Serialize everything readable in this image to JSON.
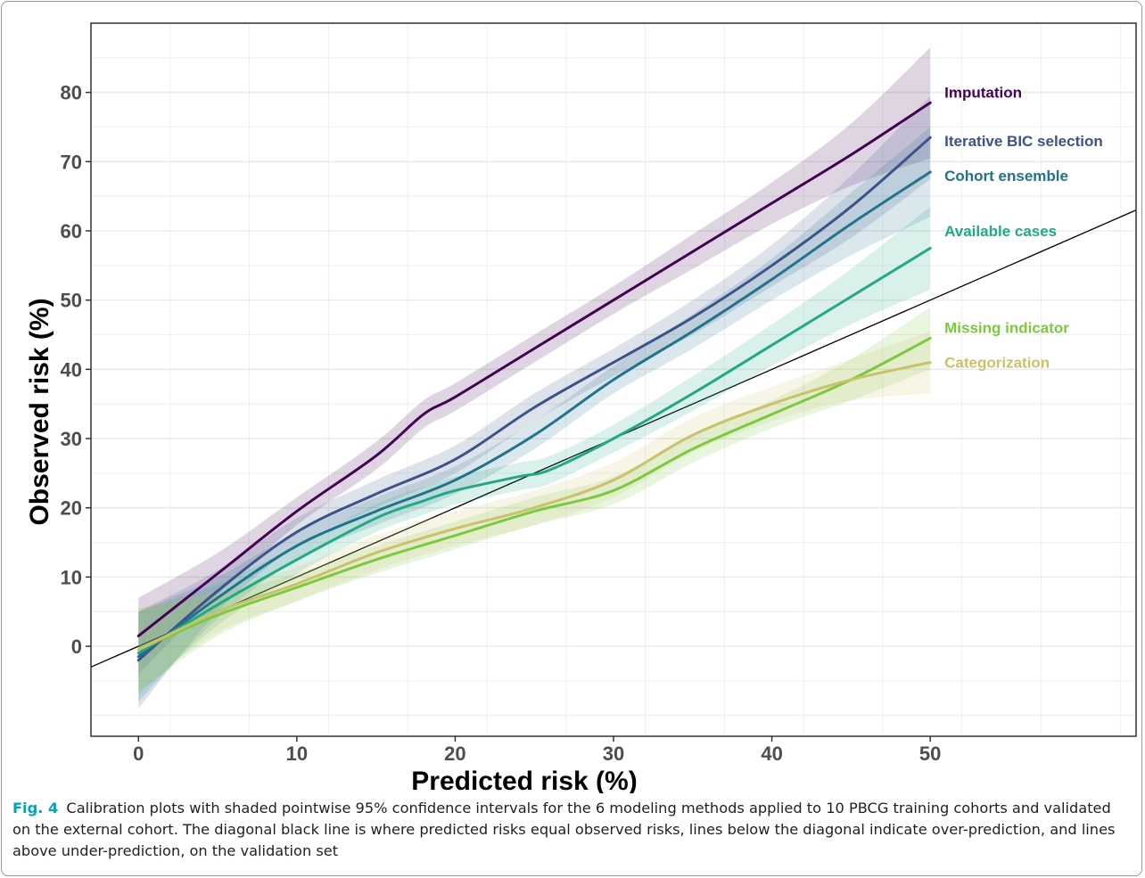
{
  "chart_data": {
    "type": "line",
    "xlabel": "Predicted risk (%)",
    "ylabel": "Observed risk (%)",
    "xlim": [
      -3,
      63
    ],
    "ylim": [
      -13,
      90
    ],
    "x_ticks": [
      0,
      10,
      20,
      30,
      40,
      50
    ],
    "y_ticks": [
      0,
      10,
      20,
      30,
      40,
      50,
      60,
      70,
      80
    ],
    "grid": true,
    "legend": "direct labels at right end of each line",
    "reference_line": {
      "description": "diagonal y = x",
      "color": "#000000"
    },
    "series": [
      {
        "name": "Imputation",
        "color": "#440154",
        "label_y": 80,
        "x": [
          0,
          5,
          10,
          15,
          18,
          20,
          25,
          30,
          35,
          40,
          45,
          50
        ],
        "y": [
          1.5,
          10.5,
          19.5,
          27.5,
          33.5,
          36,
          43,
          50,
          57,
          64,
          71,
          78.5
        ],
        "ci_half_width": [
          5.5,
          3,
          2,
          2,
          2,
          2,
          2,
          2,
          2.5,
          3,
          4.5,
          8
        ]
      },
      {
        "name": "Iterative BIC selection",
        "color": "#3b528b",
        "label_y": 73,
        "x": [
          0,
          5,
          10,
          15,
          20,
          25,
          30,
          35,
          40,
          45,
          50
        ],
        "y": [
          -2,
          8,
          16.5,
          22,
          27,
          34.5,
          41,
          47.5,
          55,
          63.5,
          73.5
        ],
        "ci_half_width": [
          7,
          3,
          2,
          2,
          2,
          2,
          2,
          2.5,
          3,
          4.5,
          6
        ]
      },
      {
        "name": "Cohort ensemble",
        "color": "#21728c",
        "label_y": 68,
        "x": [
          0,
          5,
          10,
          15,
          20,
          25,
          30,
          35,
          40,
          45,
          50
        ],
        "y": [
          -1.5,
          7,
          14.5,
          19.5,
          24,
          30.5,
          38.5,
          45.5,
          53,
          61,
          68.5
        ],
        "ci_half_width": [
          6.5,
          3,
          2,
          2,
          2,
          2,
          2,
          2.5,
          3,
          4.5,
          6.5
        ]
      },
      {
        "name": "Available cases",
        "color": "#22a884",
        "label_y": 60,
        "x": [
          0,
          5,
          10,
          15,
          18,
          20,
          24,
          26,
          30,
          35,
          40,
          45,
          50
        ],
        "y": [
          -1,
          6,
          12.5,
          18.5,
          21,
          22.5,
          24.5,
          25.5,
          30,
          36.5,
          43.5,
          50.5,
          57.5
        ],
        "ci_half_width": [
          6,
          3,
          2,
          2,
          2,
          2,
          2,
          2,
          2,
          2.5,
          3,
          4,
          6
        ]
      },
      {
        "name": "Missing indicator",
        "color": "#7ac93f",
        "label_y": 46,
        "x": [
          0,
          5,
          10,
          15,
          20,
          25,
          30,
          35,
          40,
          45,
          50
        ],
        "y": [
          -0.5,
          4.5,
          8.5,
          12.5,
          16,
          19.5,
          22.5,
          28.5,
          33.5,
          38.5,
          44.5
        ],
        "ci_half_width": [
          6,
          3,
          2,
          2,
          2,
          2,
          2,
          2,
          2,
          3,
          4.5
        ]
      },
      {
        "name": "Categorization",
        "color": "#c9c26a",
        "label_y": 41,
        "x": [
          0,
          5,
          10,
          15,
          20,
          25,
          30,
          35,
          40,
          45,
          50
        ],
        "y": [
          -0.5,
          5,
          9,
          13.5,
          17,
          20,
          24,
          30.5,
          35,
          38.5,
          41
        ],
        "ci_half_width": [
          6,
          3,
          2.5,
          2.5,
          2.5,
          2.5,
          2.5,
          2.5,
          2.5,
          3,
          4.5
        ]
      }
    ]
  },
  "caption": {
    "label": "Fig. 4",
    "text": "Calibration plots with shaded pointwise 95% confidence intervals for the 6 modeling methods applied to 10 PBCG training cohorts and validated on the external cohort. The diagonal black line is where predicted risks equal observed risks, lines below the diagonal indicate over-prediction, and lines above under-prediction, on the validation set"
  }
}
